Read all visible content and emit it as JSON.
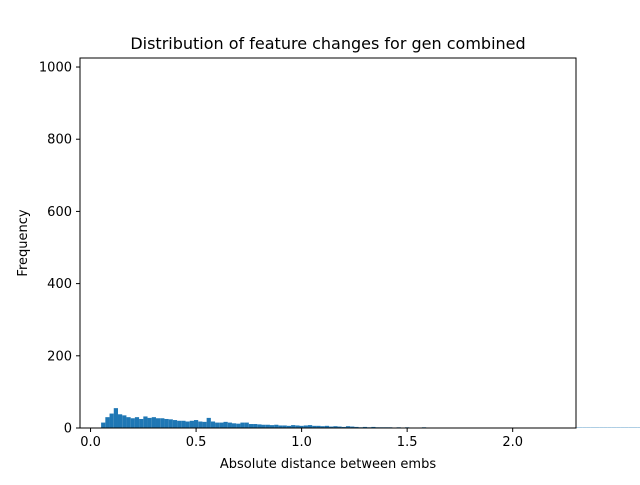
{
  "chart_data": {
    "type": "bar",
    "title": "Distribution of feature changes for gen combined",
    "xlabel": "Absolute distance between embs",
    "ylabel": "Frequency",
    "xlim": [
      -0.05,
      2.3
    ],
    "ylim": [
      0,
      1025
    ],
    "xticks": [
      {
        "value": 0.0,
        "label": "0.0"
      },
      {
        "value": 0.5,
        "label": "0.5"
      },
      {
        "value": 1.0,
        "label": "1.0"
      },
      {
        "value": 1.5,
        "label": "1.5"
      },
      {
        "value": 2.0,
        "label": "2.0"
      }
    ],
    "yticks": [
      {
        "value": 0,
        "label": "0"
      },
      {
        "value": 200,
        "label": "200"
      },
      {
        "value": 400,
        "label": "400"
      },
      {
        "value": 600,
        "label": "600"
      },
      {
        "value": 800,
        "label": "800"
      },
      {
        "value": 1000,
        "label": "1000"
      }
    ],
    "bin_start": 0.05,
    "bin_width": 0.02,
    "bar_color": "#1f77b4",
    "values": [
      15,
      30,
      40,
      55,
      38,
      35,
      30,
      27,
      30,
      25,
      32,
      28,
      30,
      27,
      27,
      25,
      24,
      22,
      20,
      20,
      18,
      20,
      22,
      18,
      17,
      28,
      18,
      15,
      15,
      17,
      15,
      13,
      12,
      15,
      15,
      11,
      11,
      10,
      9,
      9,
      8,
      9,
      7,
      7,
      6,
      8,
      7,
      6,
      7,
      8,
      6,
      6,
      5,
      6,
      4,
      5,
      4,
      3,
      5,
      4,
      3,
      2,
      3,
      2,
      3,
      2,
      2,
      2,
      2,
      1,
      2,
      1,
      2,
      1,
      1,
      1,
      2,
      1,
      1,
      1,
      1,
      1,
      1,
      1,
      1,
      1,
      1,
      1,
      1,
      1,
      1,
      1,
      1,
      1,
      1,
      1,
      1,
      1,
      1,
      1,
      1,
      1,
      1,
      1,
      1,
      1,
      1,
      1,
      1,
      1,
      1,
      1,
      1,
      1,
      1,
      1,
      1,
      1,
      1,
      1,
      1,
      1,
      1,
      1,
      1,
      1,
      1,
      1,
      1,
      1,
      1,
      1,
      1,
      1,
      1,
      1,
      1,
      1,
      1,
      1,
      1,
      1,
      1,
      1,
      1,
      1,
      1,
      1,
      1,
      1,
      1,
      1,
      1,
      1,
      1,
      1,
      1,
      1,
      1,
      1,
      1,
      1,
      1,
      1,
      1,
      1,
      1,
      1,
      1,
      1,
      1,
      1,
      1,
      1,
      1,
      1,
      1,
      1,
      1,
      1,
      1,
      1,
      1,
      1,
      1,
      1,
      1,
      1,
      1,
      1,
      1,
      1,
      1,
      1,
      1,
      1,
      1,
      1,
      1,
      1,
      1,
      1,
      1,
      1,
      1,
      1,
      1,
      1,
      1,
      1,
      1,
      1,
      1,
      1,
      1,
      1,
      1,
      1,
      1,
      1,
      1,
      1,
      1,
      1,
      1,
      1,
      1,
      1,
      1,
      1,
      1,
      1,
      1,
      1,
      1,
      1,
      1,
      1,
      1,
      1,
      1,
      1,
      1,
      1,
      1,
      1,
      1,
      1,
      1,
      1,
      1,
      1,
      1,
      1,
      1,
      1,
      1,
      1,
      1,
      1,
      1,
      1,
      1,
      1,
      1,
      1,
      1,
      1,
      1,
      1,
      1,
      1,
      1,
      1,
      1,
      1,
      1,
      1,
      1,
      1,
      1,
      1,
      1,
      1,
      1,
      1,
      1,
      1,
      1,
      1,
      1,
      1,
      1,
      1,
      1,
      1,
      1,
      1,
      1,
      1,
      1,
      1,
      1,
      1,
      1,
      1,
      1,
      1,
      1,
      1,
      1,
      1,
      1,
      1,
      1
    ]
  }
}
